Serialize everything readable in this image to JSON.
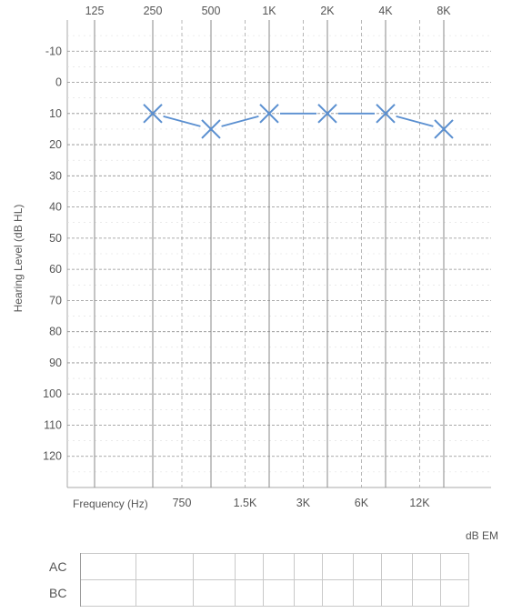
{
  "chart_data": {
    "type": "line",
    "ylabel": "Hearing Level (dB HL)",
    "xlabel": "Frequency (Hz)",
    "ylim": [
      -20,
      130
    ],
    "y_ticks": [
      -10,
      0,
      10,
      20,
      30,
      40,
      50,
      60,
      70,
      80,
      90,
      100,
      110,
      120
    ],
    "y_inverted": true,
    "octave_frequencies": [
      "125",
      "250",
      "500",
      "1K",
      "2K",
      "4K",
      "8K"
    ],
    "inter_octave_frequencies": [
      "750",
      "1.5K",
      "3K",
      "6K",
      "12K"
    ],
    "series": [
      {
        "marker": "X",
        "color": "#5a8fd0",
        "x": [
          "250",
          "500",
          "1K",
          "2K",
          "4K",
          "8K"
        ],
        "values": [
          10,
          15,
          10,
          10,
          10,
          15
        ]
      }
    ]
  },
  "masking_unit": "dB EM",
  "masking_rows": [
    "AC",
    "BC"
  ]
}
